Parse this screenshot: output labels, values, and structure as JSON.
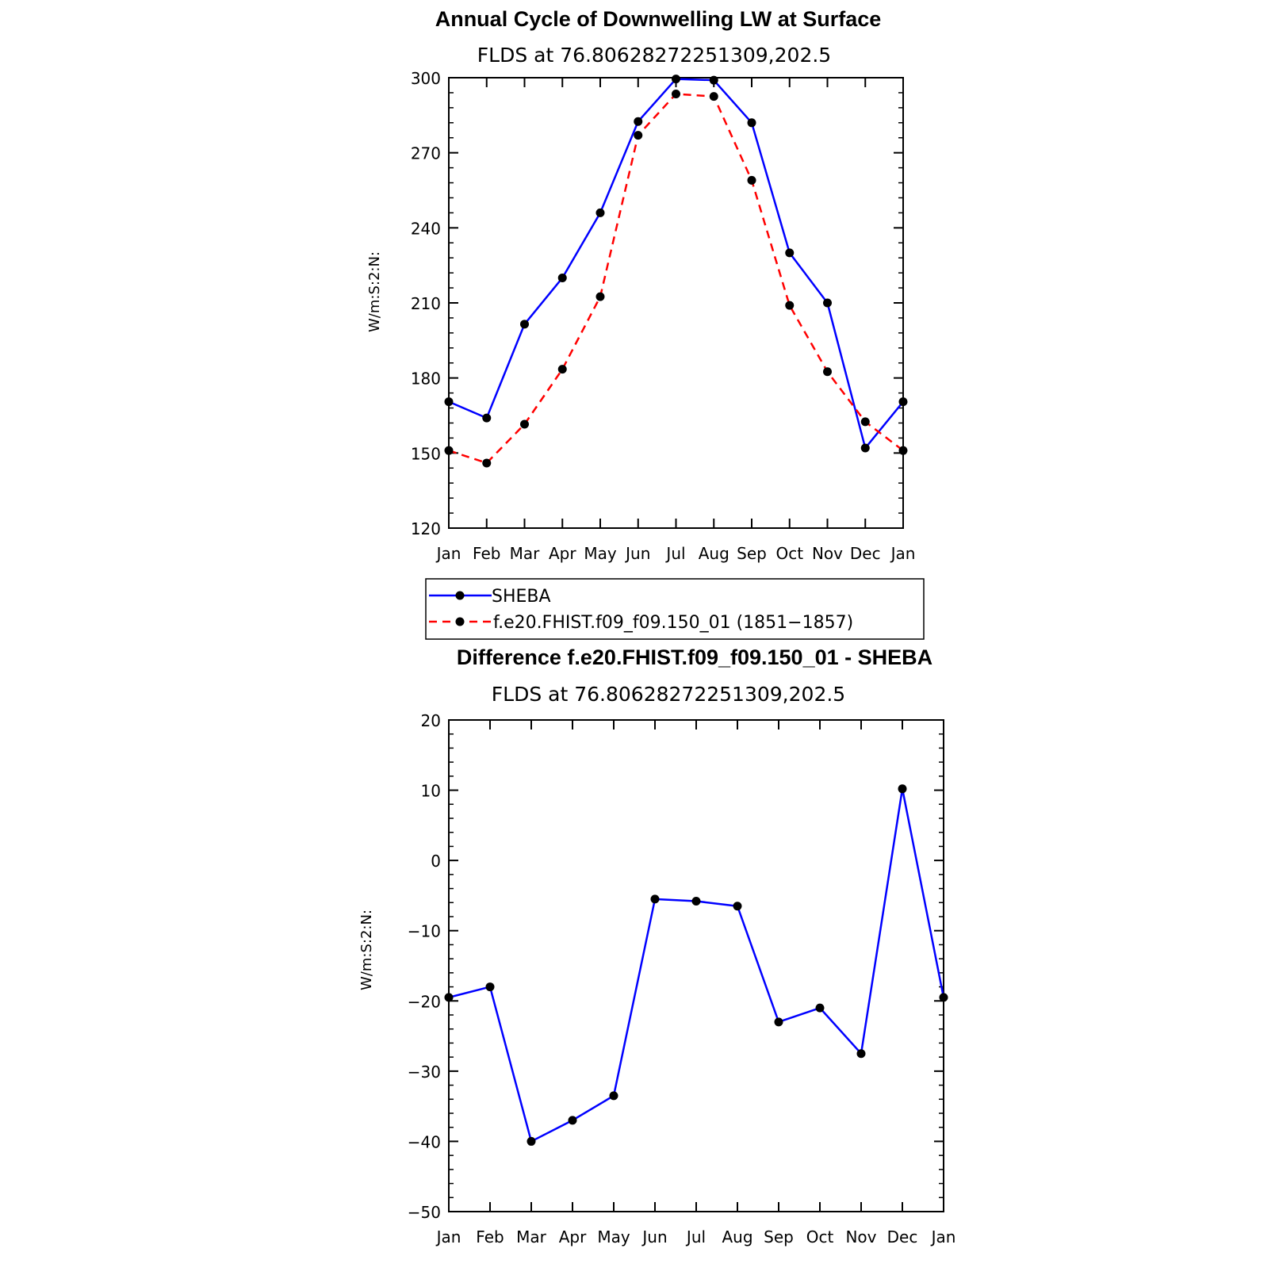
{
  "chart_data": [
    {
      "type": "line",
      "title": "Annual Cycle of Downwelling LW at Surface",
      "subtitle": "FLDS at 76.80628272251309,202.5",
      "ylabel": "W/m:S:2:N:",
      "categories": [
        "Jan",
        "Feb",
        "Mar",
        "Apr",
        "May",
        "Jun",
        "Jul",
        "Aug",
        "Sep",
        "Oct",
        "Nov",
        "Dec",
        "Jan"
      ],
      "ylim": [
        120,
        300
      ],
      "yticks": [
        120,
        150,
        180,
        210,
        240,
        270,
        300
      ],
      "series": [
        {
          "name": "SHEBA",
          "color": "#0000ff",
          "dash": "solid",
          "values": [
            170.5,
            164,
            201.5,
            220,
            246,
            282.5,
            299.5,
            299,
            282,
            230,
            210,
            152,
            170.5
          ]
        },
        {
          "name": "f.e20.FHIST.f09_f09.150_01 (1851−1857)",
          "color": "#ff0000",
          "dash": "dashed",
          "values": [
            151,
            146,
            161.5,
            183.5,
            212.5,
            277,
            293.5,
            292.5,
            259,
            209,
            182.5,
            162.5,
            151
          ]
        }
      ],
      "legend": {
        "position": "bottom-left-outside"
      }
    },
    {
      "type": "line",
      "title": "Difference f.e20.FHIST.f09_f09.150_01 - SHEBA",
      "subtitle": "FLDS at 76.80628272251309,202.5",
      "ylabel": "W/m:S:2:N:",
      "categories": [
        "Jan",
        "Feb",
        "Mar",
        "Apr",
        "May",
        "Jun",
        "Jul",
        "Aug",
        "Sep",
        "Oct",
        "Nov",
        "Dec",
        "Jan"
      ],
      "ylim": [
        -50,
        20
      ],
      "yticks": [
        -50,
        -40,
        -30,
        -20,
        -10,
        0,
        10,
        20
      ],
      "ytick_labels": [
        "−50",
        "−40",
        "−30",
        "−20",
        "−10",
        "0",
        "10",
        "20"
      ],
      "series": [
        {
          "name": "Difference",
          "color": "#0000ff",
          "dash": "solid",
          "values": [
            -19.5,
            -18,
            -40,
            -37,
            -33.5,
            -5.5,
            -5.8,
            -6.5,
            -23,
            -21,
            -27.5,
            10.2,
            -19.5
          ]
        }
      ]
    }
  ]
}
